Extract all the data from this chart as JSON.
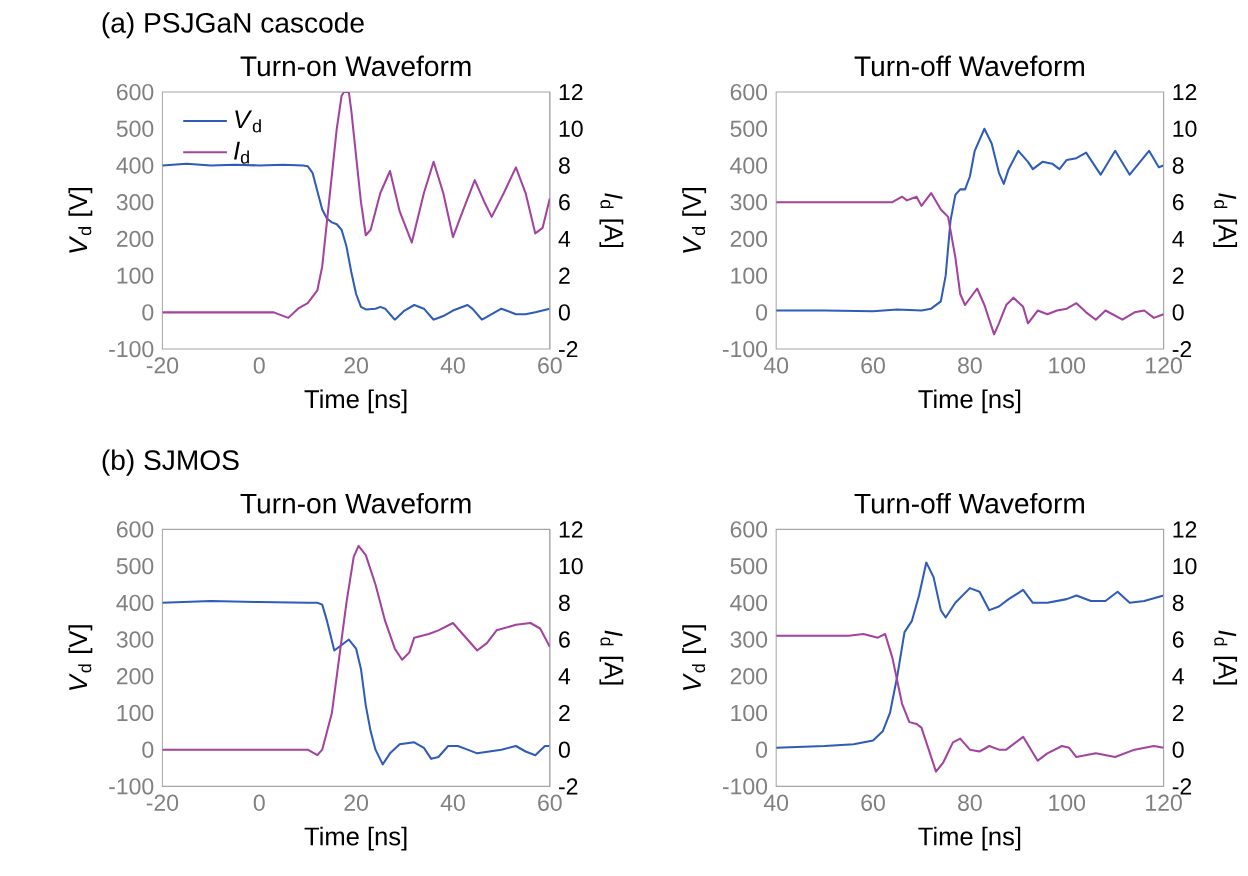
{
  "chart_data": [
    {
      "type": "line",
      "title": "Turn-on Waveform",
      "annotations": [
        "(a) PSJGaN cascode"
      ],
      "xlabel": "Time [ns]",
      "ylabel": "*V*$_{d}$ [V]",
      "y2label": "*I*$_{d}$ [A]",
      "xlim": [
        -20,
        60
      ],
      "xticks": [
        -20,
        0,
        20,
        40,
        60
      ],
      "ylim": [
        -100,
        600
      ],
      "yticks": [
        -100,
        0,
        100,
        200,
        300,
        400,
        500,
        600
      ],
      "y2lim": [
        -2,
        12
      ],
      "y2ticks": [
        -2,
        0,
        2,
        4,
        6,
        8,
        10,
        12
      ],
      "legend": "top left",
      "series": [
        {
          "name": "*V*$_{d}$",
          "color": "#2e5cb8",
          "x": [
            -20,
            -15,
            -10,
            -5,
            0,
            5,
            9,
            10,
            11,
            12,
            13,
            14,
            15,
            16,
            17,
            18,
            19,
            20,
            21,
            22,
            24,
            25,
            26,
            28,
            30,
            32,
            34,
            36,
            38,
            40,
            43,
            44,
            46,
            48,
            50,
            53,
            55,
            57,
            60
          ],
          "values": [
            400,
            405,
            400,
            402,
            400,
            402,
            400,
            398,
            380,
            330,
            280,
            255,
            245,
            240,
            225,
            180,
            110,
            50,
            15,
            8,
            10,
            15,
            10,
            -20,
            5,
            20,
            10,
            -20,
            -10,
            5,
            20,
            10,
            -20,
            -5,
            10,
            -5,
            -5,
            0,
            10
          ]
        },
        {
          "name": "*I*$_{d}$",
          "color": "#a3429f",
          "axis": "y2",
          "x": [
            -20,
            -10,
            0,
            3,
            6,
            8,
            10,
            12,
            13,
            14,
            15,
            16,
            17,
            17.5,
            18.5,
            19,
            20,
            21,
            22,
            23,
            25,
            27,
            29,
            31.5,
            34,
            36,
            38,
            40,
            42,
            44.5,
            46.5,
            48,
            50.5,
            53,
            55,
            57,
            58.5,
            60
          ],
          "values": [
            0,
            0,
            0,
            0,
            -0.3,
            0.2,
            0.5,
            1.2,
            2.5,
            5,
            7.5,
            10,
            11.8,
            12,
            12,
            11,
            8.5,
            6,
            4.2,
            4.5,
            6.5,
            7.7,
            5.5,
            3.8,
            6.5,
            8.2,
            6.5,
            4.1,
            5.5,
            7.2,
            6,
            5.2,
            6.5,
            7.9,
            6.5,
            4.3,
            4.6,
            6.2
          ]
        }
      ]
    },
    {
      "type": "line",
      "title": "Turn-off Waveform",
      "xlabel": "Time [ns]",
      "ylabel": "*V*$_{d}$ [V]",
      "y2label": "*I*$_{d}$ [A]",
      "xlim": [
        40,
        120
      ],
      "xticks": [
        40,
        60,
        80,
        100,
        120
      ],
      "ylim": [
        -100,
        600
      ],
      "yticks": [
        -100,
        0,
        100,
        200,
        300,
        400,
        500,
        600
      ],
      "y2lim": [
        -2,
        12
      ],
      "y2ticks": [
        -2,
        0,
        2,
        4,
        6,
        8,
        10,
        12
      ],
      "series": [
        {
          "color": "#2e5cb8",
          "x": [
            40,
            50,
            60,
            65,
            70,
            72,
            74,
            75,
            76,
            77,
            78,
            79,
            80,
            81,
            83,
            84.5,
            86,
            87,
            88,
            90,
            92,
            93,
            95,
            97,
            98.5,
            100,
            102,
            104,
            106,
            107,
            110,
            113,
            117,
            119,
            120
          ],
          "values": [
            5,
            5,
            3,
            8,
            5,
            10,
            30,
            100,
            250,
            320,
            335,
            335,
            370,
            440,
            500,
            460,
            380,
            350,
            390,
            440,
            410,
            390,
            410,
            405,
            390,
            415,
            420,
            435,
            395,
            375,
            440,
            375,
            440,
            395,
            400
          ]
        },
        {
          "color": "#a3429f",
          "axis": "y2",
          "x": [
            40,
            50,
            60,
            64,
            66,
            67,
            69,
            70,
            72,
            74,
            75.5,
            77,
            78,
            79,
            81.5,
            83,
            85,
            86,
            87.5,
            89,
            91,
            92,
            94,
            96,
            98,
            100,
            102,
            104,
            106,
            108,
            111.5,
            114,
            116,
            118,
            120
          ],
          "values": [
            6,
            6,
            6,
            6,
            6.3,
            6.1,
            6.3,
            5.8,
            6.5,
            5.6,
            5.2,
            3,
            1,
            0.4,
            1.3,
            0.4,
            -1.2,
            -0.6,
            0.4,
            0.8,
            0.3,
            -0.6,
            0.1,
            -0.1,
            0.1,
            0.2,
            0.5,
            0,
            -0.4,
            0.1,
            -0.4,
            0,
            0.1,
            -0.3,
            -0.1
          ]
        }
      ]
    },
    {
      "type": "line",
      "title": "Turn-on Waveform",
      "annotations": [
        "(b) SJMOS"
      ],
      "xlabel": "Time [ns]",
      "ylabel": "*V*$_{d}$ [V]",
      "y2label": "*I*$_{d}$ [A]",
      "xlim": [
        -20,
        60
      ],
      "xticks": [
        -20,
        0,
        20,
        40,
        60
      ],
      "ylim": [
        -100,
        600
      ],
      "yticks": [
        -100,
        0,
        100,
        200,
        300,
        400,
        500,
        600
      ],
      "y2lim": [
        -2,
        12
      ],
      "y2ticks": [
        -2,
        0,
        2,
        4,
        6,
        8,
        10,
        12
      ],
      "series": [
        {
          "color": "#2e5cb8",
          "x": [
            -20,
            -10,
            0,
            10,
            12,
            13,
            14,
            15.5,
            17,
            18.5,
            20,
            21,
            22,
            23,
            24,
            25.5,
            27,
            29,
            32,
            34,
            35.5,
            37,
            39,
            41,
            43,
            45,
            50,
            53,
            55,
            57,
            59,
            60
          ],
          "values": [
            400,
            405,
            402,
            400,
            400,
            395,
            350,
            270,
            285,
            300,
            275,
            220,
            120,
            50,
            0,
            -40,
            -10,
            15,
            20,
            5,
            -25,
            -20,
            10,
            10,
            0,
            -10,
            0,
            10,
            -5,
            -15,
            10,
            10
          ]
        },
        {
          "color": "#a3429f",
          "axis": "y2",
          "x": [
            -20,
            -10,
            0,
            10,
            12,
            13,
            15,
            16.5,
            18,
            19.5,
            20.5,
            22,
            24,
            26,
            28,
            29.5,
            31,
            32,
            35,
            37,
            40,
            42,
            45,
            47,
            49,
            53,
            56,
            58,
            60
          ],
          "values": [
            0,
            0,
            0,
            0,
            -0.3,
            0,
            2,
            5,
            8,
            10.5,
            11.1,
            10.6,
            9,
            7,
            5.5,
            4.9,
            5.3,
            6.1,
            6.3,
            6.5,
            6.9,
            6.3,
            5.4,
            5.8,
            6.5,
            6.8,
            6.9,
            6.6,
            5.6
          ]
        }
      ]
    },
    {
      "type": "line",
      "title": "Turn-off Waveform",
      "xlabel": "Time [ns]",
      "ylabel": "*V*$_{d}$ [V]",
      "y2label": "*I*$_{d}$ [A]",
      "xlim": [
        40,
        120
      ],
      "xticks": [
        40,
        60,
        80,
        100,
        120
      ],
      "ylim": [
        -100,
        600
      ],
      "yticks": [
        -100,
        0,
        100,
        200,
        300,
        400,
        500,
        600
      ],
      "y2lim": [
        -2,
        12
      ],
      "y2ticks": [
        -2,
        0,
        2,
        4,
        6,
        8,
        10,
        12
      ],
      "series": [
        {
          "color": "#2e5cb8",
          "x": [
            40,
            50,
            56,
            60,
            62,
            63.5,
            65,
            66.5,
            68,
            69.5,
            71,
            72.5,
            74,
            75,
            77,
            80,
            82,
            84,
            86,
            88,
            91,
            93,
            96,
            100,
            102,
            105,
            108,
            110.5,
            113,
            116,
            120
          ],
          "values": [
            5,
            10,
            15,
            25,
            50,
            100,
            200,
            320,
            350,
            420,
            510,
            470,
            380,
            360,
            400,
            440,
            430,
            380,
            390,
            410,
            435,
            400,
            400,
            410,
            420,
            405,
            405,
            430,
            400,
            405,
            420
          ]
        },
        {
          "color": "#a3429f",
          "axis": "y2",
          "x": [
            40,
            50,
            55,
            58,
            61,
            62.5,
            64,
            66,
            67.5,
            69,
            70,
            71.5,
            73,
            74.5,
            76.5,
            78,
            80,
            82,
            84,
            86,
            87.5,
            91,
            94,
            96,
            99,
            100.5,
            102,
            106,
            110,
            114,
            118,
            120
          ],
          "values": [
            6.2,
            6.2,
            6.2,
            6.3,
            6.1,
            6.3,
            5,
            2.5,
            1.5,
            1.4,
            1.2,
            0,
            -1.2,
            -0.7,
            0.4,
            0.6,
            0,
            -0.1,
            0.2,
            0,
            0,
            0.7,
            -0.6,
            -0.2,
            0.2,
            0.1,
            -0.4,
            -0.2,
            -0.4,
            0,
            0.2,
            0.1
          ]
        }
      ]
    }
  ]
}
